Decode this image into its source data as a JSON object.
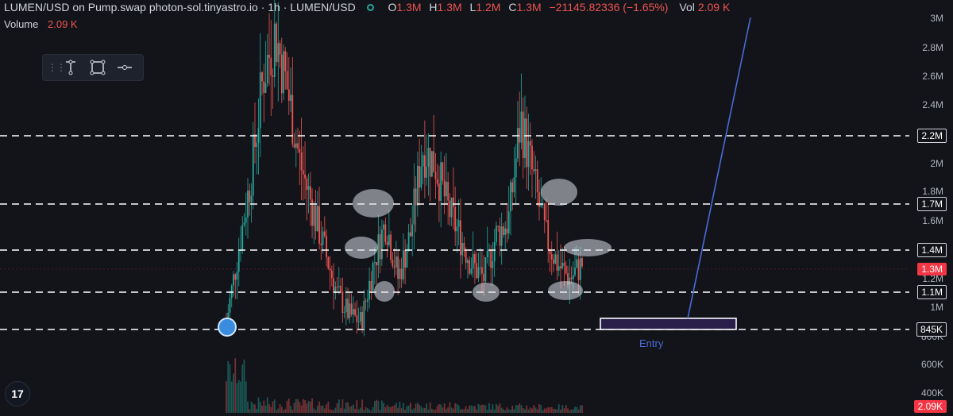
{
  "header": {
    "title": "LUMEN/USD on Pump.swap photon-sol.tinyastro.io · 1h · LUMEN/USD",
    "o_label": "O",
    "o_value": "1.3M",
    "h_label": "H",
    "h_value": "1.3M",
    "l_label": "L",
    "l_value": "1.2M",
    "c_label": "C",
    "c_value": "1.3M",
    "change": "−21145.82336 (−1.65%)",
    "vol_label": "Vol",
    "vol_value": "2.09 K"
  },
  "volume_legend": {
    "label": "Volume",
    "value": "2.09 K"
  },
  "toolbar": {
    "icons": [
      "drag-handle-icon",
      "vertical-measure-icon",
      "rectangle-icon",
      "horizontal-ray-icon"
    ]
  },
  "y_axis": {
    "ticks": [
      "3M",
      "2.8M",
      "2.6M",
      "2.4M",
      "2.2M",
      "2M",
      "1.8M",
      "1.7M",
      "1.6M",
      "1.4M",
      "1.3M",
      "1.2M",
      "1.1M",
      "1M",
      "845K",
      "800K",
      "600K",
      "400K",
      "2.09K"
    ]
  },
  "levels": {
    "l1": "2.2M",
    "l2": "1.7M",
    "l3": "1.4M",
    "l4": "1.1M",
    "l5": "845K"
  },
  "current_price": "1.3M",
  "volume_tag": "2.09K",
  "annotation": {
    "entry": "Entry"
  },
  "colors": {
    "up": "#26a69a",
    "down": "#ef5350",
    "line": "#4a6bd8",
    "background": "#12141a"
  },
  "chart_data": {
    "type": "candlestick",
    "y_unit": "USD market cap",
    "horizontal_levels": [
      2200000,
      1700000,
      1400000,
      1100000,
      845000
    ],
    "current_price": 1300000,
    "closes_approx": [
      900000,
      1400000,
      1900000,
      2600000,
      2900000,
      2500000,
      2000000,
      1700000,
      1400000,
      1100000,
      950000,
      900000,
      1300000,
      1600000,
      1200000,
      1500000,
      2100000,
      2000000,
      1700000,
      1500000,
      1300000,
      1200000,
      1500000,
      1600000,
      2300000,
      1900000,
      1500000,
      1300000,
      1200000,
      1300000
    ]
  }
}
